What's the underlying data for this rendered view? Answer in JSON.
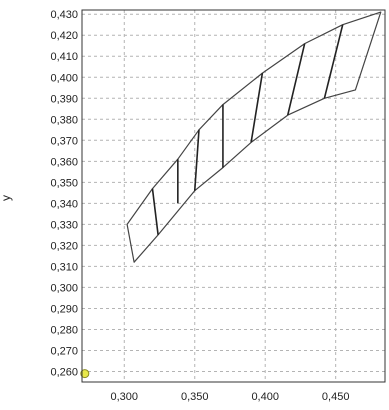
{
  "chart_data": {
    "type": "line",
    "title": "",
    "xlabel": "",
    "ylabel": "y",
    "xlim": [
      0.27,
      0.485
    ],
    "ylim": [
      0.255,
      0.432
    ],
    "grid": true,
    "grid_style": "dashed",
    "x_ticks": [
      {
        "value": 0.3,
        "label": "0,300"
      },
      {
        "value": 0.35,
        "label": "0,350"
      },
      {
        "value": 0.4,
        "label": "0,400"
      },
      {
        "value": 0.45,
        "label": "0,450"
      }
    ],
    "y_ticks": [
      {
        "value": 0.26,
        "label": "0,260"
      },
      {
        "value": 0.27,
        "label": "0,270"
      },
      {
        "value": 0.28,
        "label": "0,280"
      },
      {
        "value": 0.29,
        "label": "0,290"
      },
      {
        "value": 0.3,
        "label": "0,300"
      },
      {
        "value": 0.31,
        "label": "0,310"
      },
      {
        "value": 0.32,
        "label": "0,320"
      },
      {
        "value": 0.33,
        "label": "0,330"
      },
      {
        "value": 0.34,
        "label": "0,340"
      },
      {
        "value": 0.35,
        "label": "0,350"
      },
      {
        "value": 0.36,
        "label": "0,360"
      },
      {
        "value": 0.37,
        "label": "0,370"
      },
      {
        "value": 0.38,
        "label": "0,380"
      },
      {
        "value": 0.39,
        "label": "0,390"
      },
      {
        "value": 0.4,
        "label": "0,400"
      },
      {
        "value": 0.41,
        "label": "0,410"
      },
      {
        "value": 0.42,
        "label": "0,420"
      },
      {
        "value": 0.43,
        "label": "0,430"
      }
    ],
    "series": [
      {
        "role": "outline",
        "color": "#444444",
        "points": [
          [
            0.302,
            0.33
          ],
          [
            0.32,
            0.347
          ],
          [
            0.338,
            0.361
          ],
          [
            0.353,
            0.375
          ],
          [
            0.37,
            0.387
          ],
          [
            0.398,
            0.402
          ],
          [
            0.428,
            0.416
          ],
          [
            0.455,
            0.425
          ],
          [
            0.482,
            0.431
          ],
          [
            0.464,
            0.394
          ],
          [
            0.442,
            0.39
          ],
          [
            0.416,
            0.382
          ],
          [
            0.39,
            0.369
          ],
          [
            0.37,
            0.357
          ],
          [
            0.35,
            0.346
          ],
          [
            0.324,
            0.325
          ],
          [
            0.307,
            0.312
          ],
          [
            0.302,
            0.33
          ]
        ]
      },
      {
        "role": "ruling",
        "color": "#222222",
        "segments": [
          [
            [
              0.32,
              0.347
            ],
            [
              0.324,
              0.325
            ]
          ],
          [
            [
              0.338,
              0.361
            ],
            [
              0.338,
              0.34
            ]
          ],
          [
            [
              0.353,
              0.375
            ],
            [
              0.35,
              0.346
            ]
          ],
          [
            [
              0.37,
              0.387
            ],
            [
              0.37,
              0.357
            ]
          ],
          [
            [
              0.398,
              0.402
            ],
            [
              0.39,
              0.369
            ]
          ],
          [
            [
              0.428,
              0.416
            ],
            [
              0.416,
              0.382
            ]
          ],
          [
            [
              0.455,
              0.425
            ],
            [
              0.442,
              0.39
            ]
          ]
        ]
      }
    ],
    "markers": [
      {
        "name": "origin-marker",
        "x": 0.272,
        "y": 0.259,
        "fill": "#e8e84a",
        "stroke": "#8a8a20"
      }
    ],
    "colors": {
      "frame": "#333333",
      "grid": "#b4b4b4",
      "background": "#ffffff"
    }
  }
}
